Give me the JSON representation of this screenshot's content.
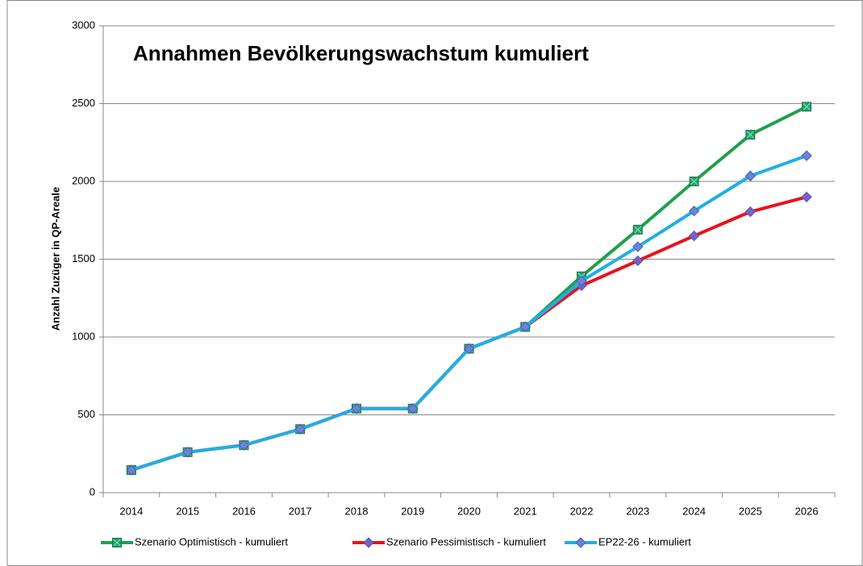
{
  "chart_data": {
    "type": "line",
    "title": "Annahmen Bevölkerungswachstum kumuliert",
    "y_label": "Anzahl Zuzüger in QP-Areale",
    "categories": [
      "2014",
      "2015",
      "2016",
      "2017",
      "2018",
      "2019",
      "2020",
      "2021",
      "2022",
      "2023",
      "2024",
      "2025",
      "2026"
    ],
    "series": [
      {
        "name": "Szenario Optimistisch - kumuliert",
        "color": "#1fa04b",
        "marker_color": "#1f9e7a",
        "marker": "square",
        "values": [
          145,
          260,
          305,
          408,
          540,
          540,
          925,
          1065,
          1390,
          1690,
          2000,
          2300,
          2480
        ]
      },
      {
        "name": "Szenario Pessimistisch - kumuliert",
        "color": "#e8121b",
        "marker_color": "#7a5fc8",
        "marker": "diamond",
        "values": [
          145,
          260,
          305,
          408,
          540,
          540,
          925,
          1065,
          1330,
          1490,
          1650,
          1805,
          1900
        ]
      },
      {
        "name": "EP22-26 - kumuliert",
        "color": "#20aee6",
        "marker_color": "#6b82d8",
        "marker": "diamond",
        "values": [
          145,
          260,
          305,
          408,
          540,
          540,
          925,
          1065,
          1360,
          1580,
          1810,
          2035,
          2165
        ]
      }
    ],
    "ylim": [
      0,
      3000
    ],
    "yticks": [
      0,
      500,
      1000,
      1500,
      2000,
      2500,
      3000
    ],
    "grid": true,
    "legend": "bottom"
  }
}
